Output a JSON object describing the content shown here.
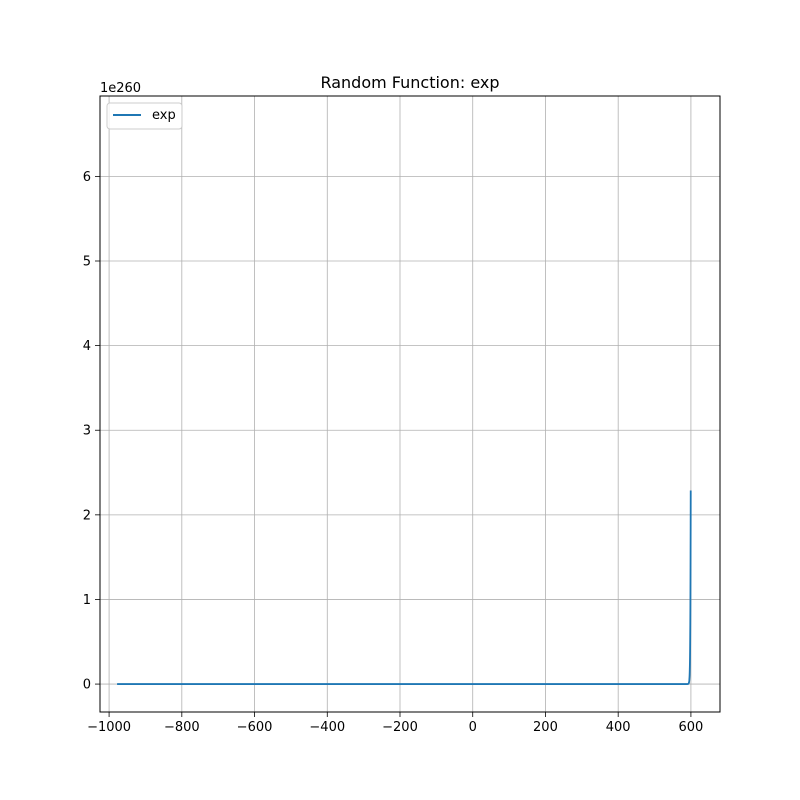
{
  "chart_data": {
    "type": "line",
    "title": "Random Function: exp",
    "xlabel": "",
    "ylabel": "",
    "y_offset_label": "1e260",
    "y_scale_factor": 1e+260,
    "xlim": [
      -1025,
      680
    ],
    "ylim": [
      -0.33,
      6.95
    ],
    "grid": true,
    "legend_placement": "upper-left",
    "x_ticks": [
      {
        "value": -1000,
        "label": "−1000"
      },
      {
        "value": -800,
        "label": "−800"
      },
      {
        "value": -600,
        "label": "−600"
      },
      {
        "value": -400,
        "label": "−400"
      },
      {
        "value": -200,
        "label": "−200"
      },
      {
        "value": 0,
        "label": "0"
      },
      {
        "value": 200,
        "label": "200"
      },
      {
        "value": 400,
        "label": "400"
      },
      {
        "value": 600,
        "label": "600"
      }
    ],
    "y_ticks": [
      {
        "value": 0,
        "label": "0"
      },
      {
        "value": 1,
        "label": "1"
      },
      {
        "value": 2,
        "label": "2"
      },
      {
        "value": 3,
        "label": "3"
      },
      {
        "value": 4,
        "label": "4"
      },
      {
        "value": 5,
        "label": "5"
      },
      {
        "value": 6,
        "label": "6"
      }
    ],
    "series": [
      {
        "name": "exp",
        "color": "#1f77b4",
        "function": "exp",
        "x_start": -978,
        "x_end": 599.5
      }
    ]
  }
}
